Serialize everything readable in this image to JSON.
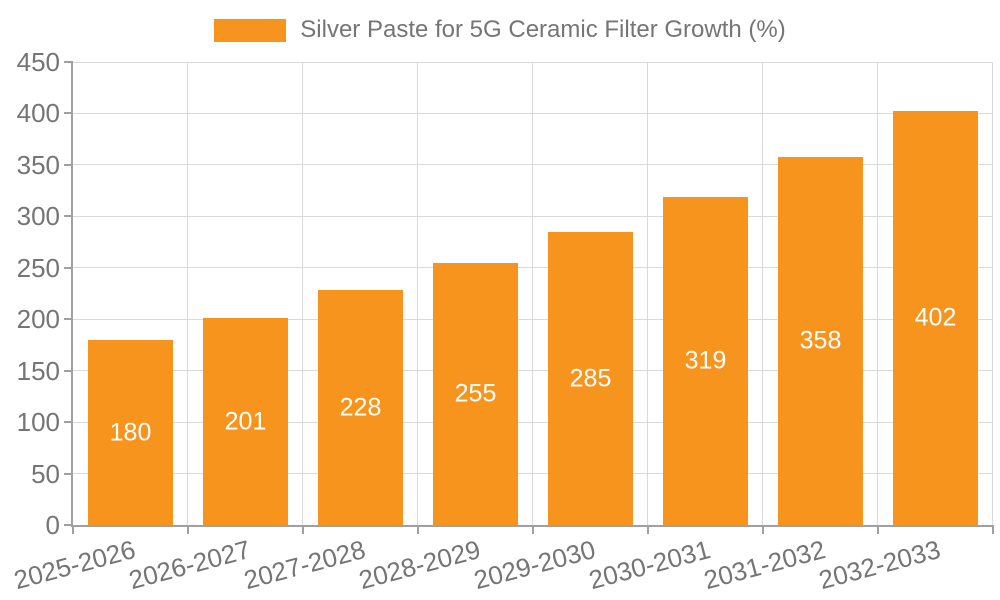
{
  "legend": {
    "label": "Silver Paste for 5G Ceramic Filter Growth (%)"
  },
  "chart_data": {
    "type": "bar",
    "title": "Silver Paste for 5G Ceramic Filter Growth (%)",
    "categories": [
      "2025-2026",
      "2026-2027",
      "2027-2028",
      "2028-2029",
      "2029-2030",
      "2030-2031",
      "2031-2032",
      "2032-2033"
    ],
    "values": [
      180,
      201,
      228,
      255,
      285,
      319,
      358,
      402
    ],
    "xlabel": "",
    "ylabel": "",
    "ylim": [
      0,
      450
    ],
    "ytick_step": 50,
    "grid": true,
    "legend_position": "top-center",
    "x_label_rotation_deg": -15,
    "bar_color": "#F7941E",
    "value_label_color": "#FFFFFF",
    "axis_text_color": "#757575",
    "grid_color": "#D9D9D9",
    "axis_line_color": "#A0A0A0",
    "background_color": "#FFFFFF"
  }
}
